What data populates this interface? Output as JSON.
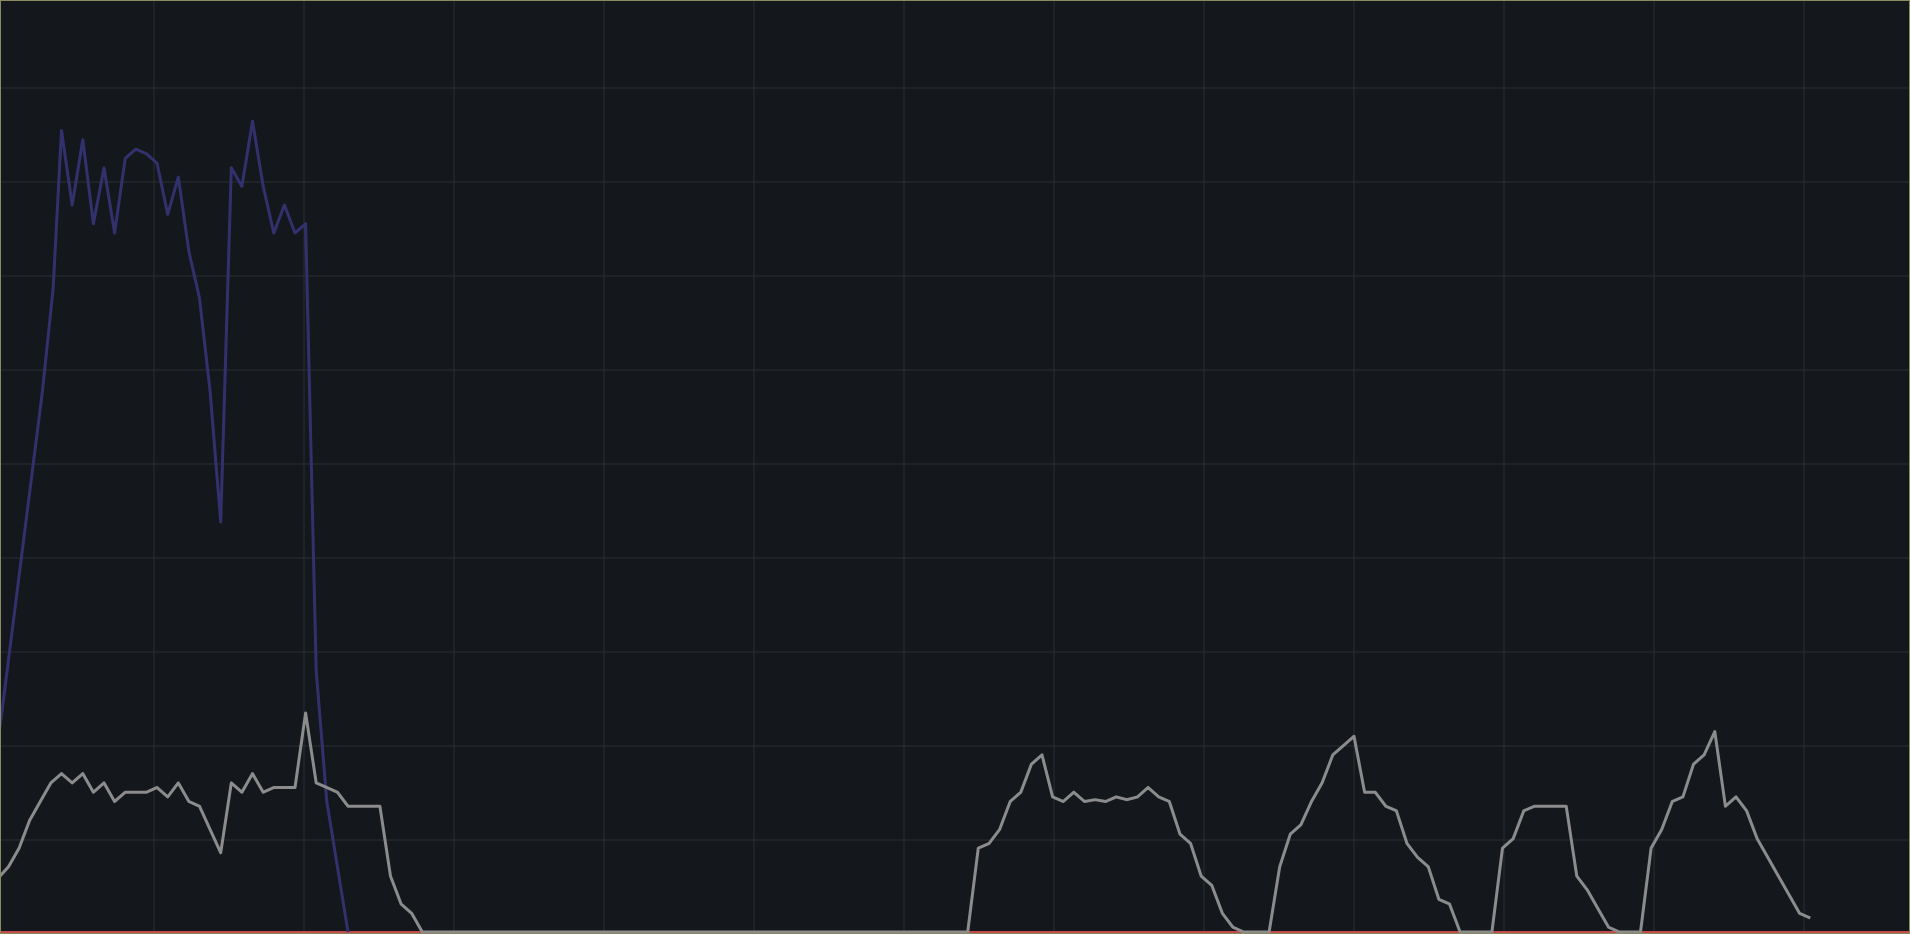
{
  "chart_data": {
    "type": "line",
    "title": "",
    "xlabel": "",
    "ylabel": "",
    "grid": true,
    "legend": "none",
    "colors": {
      "background": "#14171b",
      "grid": "#2a2d32",
      "border": "#8a8a62",
      "baseline": "#c24a4a"
    },
    "xlim": [
      0,
      180
    ],
    "ylim": [
      0,
      100
    ],
    "series": [
      {
        "color": "#33306e",
        "points": [
          [
            0,
            22
          ],
          [
            2,
            40
          ],
          [
            4,
            58
          ],
          [
            5,
            69
          ],
          [
            5.8,
            86
          ],
          [
            6.8,
            78
          ],
          [
            7.8,
            85
          ],
          [
            8.8,
            76
          ],
          [
            9.8,
            82
          ],
          [
            10.8,
            75
          ],
          [
            11.8,
            83
          ],
          [
            12.8,
            84
          ],
          [
            13.8,
            83.5
          ],
          [
            14.8,
            82.5
          ],
          [
            15.8,
            77
          ],
          [
            16.8,
            81
          ],
          [
            17.8,
            73
          ],
          [
            18.8,
            68
          ],
          [
            19.8,
            58
          ],
          [
            20.8,
            44
          ],
          [
            21.8,
            82
          ],
          [
            22.8,
            80
          ],
          [
            23.8,
            87
          ],
          [
            24.8,
            80
          ],
          [
            25.8,
            75
          ],
          [
            26.8,
            78
          ],
          [
            27.8,
            75
          ],
          [
            28.8,
            76
          ],
          [
            29.8,
            28
          ],
          [
            30.8,
            14
          ],
          [
            32.8,
            0
          ]
        ]
      },
      {
        "color": "#8c8c8c",
        "points": [
          [
            0,
            6
          ],
          [
            0.8,
            7
          ],
          [
            1.8,
            9
          ],
          [
            2.8,
            12
          ],
          [
            3.8,
            14
          ],
          [
            4.8,
            16
          ],
          [
            5.8,
            17
          ],
          [
            6.8,
            16
          ],
          [
            7.8,
            17
          ],
          [
            8.8,
            15
          ],
          [
            9.8,
            16
          ],
          [
            10.8,
            14
          ],
          [
            11.8,
            15
          ],
          [
            12.8,
            15
          ],
          [
            13.8,
            15
          ],
          [
            14.8,
            15.5
          ],
          [
            15.8,
            14.5
          ],
          [
            16.8,
            16
          ],
          [
            17.8,
            14
          ],
          [
            18.8,
            13.5
          ],
          [
            19.8,
            11
          ],
          [
            20.8,
            8.5
          ],
          [
            21.8,
            16
          ],
          [
            22.8,
            15
          ],
          [
            23.8,
            17
          ],
          [
            24.8,
            15
          ],
          [
            25.8,
            15.5
          ],
          [
            26.8,
            15.5
          ],
          [
            27.8,
            15.5
          ],
          [
            28.8,
            23.5
          ],
          [
            29.8,
            16
          ],
          [
            30.8,
            15.5
          ],
          [
            31.8,
            15
          ],
          [
            32.8,
            13.5
          ],
          [
            33.8,
            13.5
          ],
          [
            34.8,
            13.5
          ],
          [
            35.8,
            13.5
          ],
          [
            36.8,
            6
          ],
          [
            37.8,
            3
          ],
          [
            38.8,
            2
          ],
          [
            39.8,
            0
          ],
          [
            91.2,
            0
          ],
          [
            92.2,
            9
          ],
          [
            93.2,
            9.5
          ],
          [
            94.2,
            11
          ],
          [
            95.2,
            14
          ],
          [
            96.2,
            15
          ],
          [
            97.2,
            18
          ],
          [
            98.2,
            19
          ],
          [
            99.2,
            14.5
          ],
          [
            100.2,
            14
          ],
          [
            101.2,
            15
          ],
          [
            102.2,
            14
          ],
          [
            103.2,
            14.2
          ],
          [
            104.2,
            14
          ],
          [
            105.2,
            14.5
          ],
          [
            106.2,
            14.2
          ],
          [
            107.2,
            14.5
          ],
          [
            108.2,
            15.5
          ],
          [
            109.2,
            14.5
          ],
          [
            110.2,
            14
          ],
          [
            111.2,
            10.5
          ],
          [
            112.2,
            9.5
          ],
          [
            113.2,
            6
          ],
          [
            114.2,
            5
          ],
          [
            115.2,
            2
          ],
          [
            116.2,
            0.5
          ],
          [
            117.2,
            0
          ],
          [
            119.2,
            0
          ],
          [
            119.6,
            0
          ],
          [
            120.6,
            7
          ],
          [
            121.6,
            10.5
          ],
          [
            122.6,
            11.5
          ],
          [
            123.6,
            14
          ],
          [
            124.6,
            16
          ],
          [
            125.6,
            19
          ],
          [
            126.6,
            20
          ],
          [
            127.6,
            21
          ],
          [
            128.6,
            15
          ],
          [
            129.6,
            15
          ],
          [
            130.6,
            13.5
          ],
          [
            131.6,
            13
          ],
          [
            132.6,
            9.5
          ],
          [
            133.6,
            8
          ],
          [
            134.6,
            7
          ],
          [
            135.6,
            3.5
          ],
          [
            136.6,
            3
          ],
          [
            137.6,
            0
          ],
          [
            140.6,
            0
          ],
          [
            141.6,
            9
          ],
          [
            142.6,
            10
          ],
          [
            143.6,
            13
          ],
          [
            144.6,
            13.5
          ],
          [
            145.6,
            13.5
          ],
          [
            146.6,
            13.5
          ],
          [
            147.6,
            13.5
          ],
          [
            148.6,
            6
          ],
          [
            149.6,
            4.5
          ],
          [
            150.6,
            2.5
          ],
          [
            151.6,
            0.5
          ],
          [
            152.6,
            0
          ],
          [
            154.6,
            0
          ],
          [
            154.6,
            0
          ],
          [
            155.6,
            9
          ],
          [
            156.6,
            11
          ],
          [
            157.6,
            14
          ],
          [
            158.6,
            14.5
          ],
          [
            159.6,
            18
          ],
          [
            160.6,
            19
          ],
          [
            161.6,
            21.5
          ],
          [
            162.6,
            13.5
          ],
          [
            163.6,
            14.5
          ],
          [
            164.6,
            13
          ],
          [
            165.6,
            10
          ],
          [
            166.6,
            8
          ],
          [
            167.6,
            6
          ],
          [
            168.6,
            4
          ],
          [
            169.6,
            2
          ],
          [
            170.6,
            1.5
          ]
        ]
      }
    ]
  }
}
